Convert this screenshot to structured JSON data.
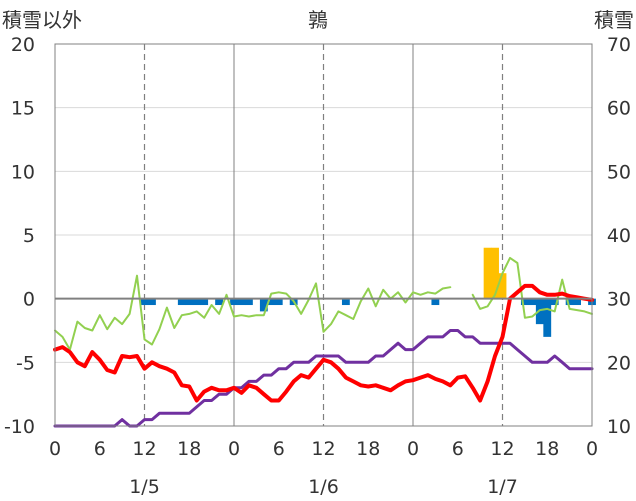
{
  "chart_data": {
    "type": "line",
    "title": "鶉",
    "ylabel_left": "積雪以外",
    "ylabel_right": "積雪",
    "ylim_left": [
      -10,
      20
    ],
    "ylim_right": [
      10,
      70
    ],
    "yticks_left": [
      -10,
      -5,
      0,
      5,
      10,
      15,
      20
    ],
    "yticks_right": [
      10,
      20,
      30,
      40,
      50,
      60,
      70
    ],
    "xlim_hours": [
      0,
      72
    ],
    "x_tick_labels": [
      "0",
      "6",
      "12",
      "18",
      "0",
      "6",
      "12",
      "18",
      "0",
      "6",
      "12",
      "18",
      "0"
    ],
    "date_labels": [
      {
        "label": "1/5",
        "hour": 12
      },
      {
        "label": "1/6",
        "hour": 36
      },
      {
        "label": "1/7",
        "hour": 60
      }
    ],
    "day_lines_hours": [
      24,
      48
    ],
    "noon_lines_hours": [
      12,
      36,
      60
    ],
    "gridlines_y": [
      -10,
      -5,
      0,
      5,
      10,
      15,
      20
    ],
    "colors": {
      "temperature": "#ff0000",
      "snow_depth": "#7030a0",
      "dew_point": "#92d050",
      "bars_negative": "#0070c0",
      "bars_positive": "#ffc000",
      "zero_line": "#808080",
      "noon_lines": "#808080",
      "grid": "#d9d9d9"
    },
    "series": [
      {
        "key": "temperature",
        "axis": "left",
        "stroke": 4,
        "x": [
          0,
          1,
          2,
          3,
          4,
          5,
          6,
          7,
          8,
          9,
          10,
          11,
          12,
          13,
          14,
          15,
          16,
          17,
          18,
          19,
          20,
          21,
          22,
          23,
          24,
          25,
          26,
          27,
          28,
          29,
          30,
          31,
          32,
          33,
          34,
          35,
          36,
          37,
          38,
          39,
          40,
          41,
          42,
          43,
          44,
          45,
          46,
          47,
          48,
          49,
          50,
          51,
          52,
          53,
          54,
          55,
          56,
          57,
          58,
          59,
          60,
          61,
          62,
          63,
          64,
          65,
          66,
          67,
          68,
          69,
          70,
          71,
          72
        ],
        "values": [
          -4,
          -3.8,
          -4.2,
          -5,
          -5.3,
          -4.2,
          -4.8,
          -5.6,
          -5.8,
          -4.5,
          -4.6,
          -4.5,
          -5.5,
          -5,
          -5.3,
          -5.5,
          -5.8,
          -6.8,
          -6.9,
          -8,
          -7.3,
          -7,
          -7.2,
          -7.2,
          -7,
          -7.4,
          -6.8,
          -7,
          -7.5,
          -8,
          -8,
          -7.3,
          -6.5,
          -6,
          -6.2,
          -5.5,
          -4.8,
          -5,
          -5.5,
          -6.2,
          -6.5,
          -6.8,
          -6.9,
          -6.8,
          -7,
          -7.2,
          -6.8,
          -6.5,
          -6.4,
          -6.2,
          -6,
          -6.3,
          -6.5,
          -6.8,
          -6.2,
          -6.1,
          -7,
          -8,
          -6.5,
          -4.5,
          -3,
          0,
          0.5,
          1,
          1,
          0.5,
          0.3,
          0.3,
          0.4,
          0.2,
          0.1,
          0,
          -0.1
        ]
      },
      {
        "key": "snow_depth",
        "axis": "right",
        "stroke": 3,
        "x": [
          0,
          1,
          2,
          3,
          4,
          5,
          6,
          7,
          8,
          9,
          10,
          11,
          12,
          13,
          14,
          15,
          16,
          17,
          18,
          19,
          20,
          21,
          22,
          23,
          24,
          25,
          26,
          27,
          28,
          29,
          30,
          31,
          32,
          33,
          34,
          35,
          36,
          37,
          38,
          39,
          40,
          41,
          42,
          43,
          44,
          45,
          46,
          47,
          48,
          49,
          50,
          51,
          52,
          53,
          54,
          55,
          56,
          57,
          58,
          59,
          60,
          61,
          62,
          63,
          64,
          65,
          66,
          67,
          68,
          69,
          70,
          71,
          72
        ],
        "values": [
          10,
          10,
          10,
          10,
          10,
          10,
          10,
          10,
          10,
          11,
          10,
          10,
          11,
          11,
          12,
          12,
          12,
          12,
          12,
          13,
          14,
          14,
          15,
          15,
          16,
          16,
          17,
          17,
          18,
          18,
          19,
          19,
          20,
          20,
          20,
          21,
          21,
          21,
          21,
          20,
          20,
          20,
          20,
          21,
          21,
          22,
          23,
          22,
          22,
          23,
          24,
          24,
          24,
          25,
          25,
          24,
          24,
          23,
          23,
          23,
          23,
          23,
          22,
          21,
          20,
          20,
          20,
          21,
          20,
          19,
          19,
          19,
          19
        ]
      },
      {
        "key": "dew_point",
        "axis": "left",
        "stroke": 2,
        "x": [
          0,
          1,
          2,
          3,
          4,
          5,
          6,
          7,
          8,
          9,
          10,
          11,
          12,
          13,
          14,
          15,
          16,
          17,
          18,
          19,
          20,
          21,
          22,
          23,
          24,
          25,
          26,
          27,
          28,
          29,
          30,
          31,
          32,
          33,
          34,
          35,
          36,
          37,
          38,
          39,
          40,
          41,
          42,
          43,
          44,
          45,
          46,
          47,
          48,
          49,
          50,
          51,
          52,
          53,
          54,
          55,
          56,
          57,
          58,
          59,
          60,
          61,
          62,
          63,
          64,
          65,
          66,
          67,
          68,
          69,
          70,
          71,
          72
        ],
        "values": [
          -2.5,
          -3,
          -4,
          -1.8,
          -2.3,
          -2.5,
          -1.3,
          -2.4,
          -1.5,
          -2,
          -1.2,
          1.8,
          -3.2,
          -3.6,
          -2.4,
          -0.7,
          -2.3,
          -1.3,
          -1.2,
          -1,
          -1.5,
          -0.5,
          -1.2,
          0.3,
          -1.4,
          -1.3,
          -1.4,
          -1.3,
          -1.3,
          0.4,
          0.5,
          0.4,
          -0.2,
          -1.2,
          -0.1,
          1.2,
          -2.6,
          -2,
          -1,
          -1.3,
          -1.6,
          -0.2,
          0.8,
          -0.6,
          0.7,
          0,
          0.5,
          -0.3,
          0.5,
          0.3,
          0.5,
          0.4,
          0.8,
          0.9,
          null,
          null,
          0.3,
          -0.8,
          -0.6,
          0.3,
          2,
          3.2,
          2.8,
          -1.5,
          -1.4,
          -0.9,
          -0.8,
          -1,
          1.5,
          -0.8,
          -0.9,
          -1,
          -1.2
        ]
      }
    ],
    "bars": {
      "axis": "left",
      "x": [
        12,
        13,
        17,
        18,
        19,
        20,
        21,
        22,
        23,
        24,
        25,
        26,
        27,
        28,
        29,
        30,
        31,
        32,
        33,
        34,
        35,
        36,
        37,
        38,
        39,
        40,
        41,
        42,
        43,
        44,
        45,
        46,
        47,
        48,
        49,
        50,
        51,
        52,
        53,
        54,
        55,
        56,
        57,
        58,
        59,
        60,
        61,
        62,
        63,
        64,
        65,
        66,
        67,
        68,
        69,
        70,
        71,
        72
      ],
      "values": [
        -0.5,
        -0.5,
        -0.5,
        -0.5,
        -0.5,
        -0.5,
        0,
        -0.5,
        0,
        -0.5,
        -0.5,
        -0.5,
        0,
        -1,
        -0.5,
        -0.5,
        0,
        -0.5,
        0,
        0,
        0,
        0,
        0,
        0,
        -0.5,
        0,
        0,
        0,
        0,
        0,
        0,
        0,
        0,
        0,
        0,
        0,
        -0.5,
        0,
        0,
        0,
        0,
        0,
        0,
        4,
        4,
        2,
        0,
        0,
        -0.5,
        -0.5,
        -2,
        -3,
        -0.5,
        0,
        -0.5,
        -0.5,
        0,
        -0.5
      ]
    }
  }
}
